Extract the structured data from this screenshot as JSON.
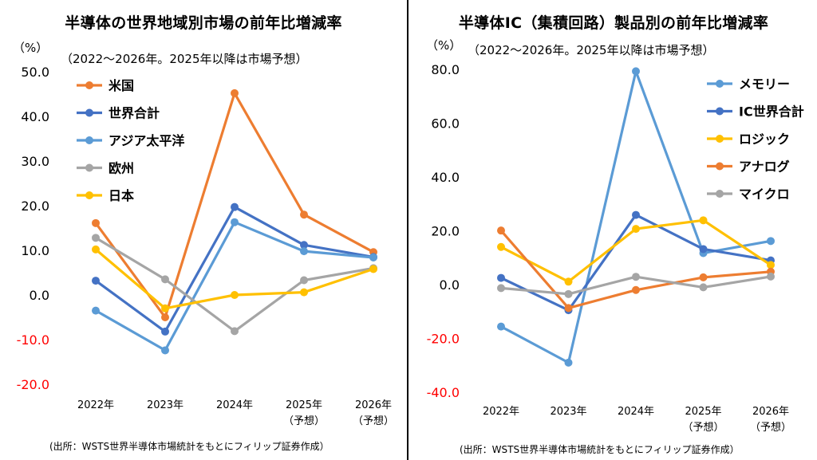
{
  "chart_data": [
    {
      "type": "line",
      "title": "半導体の世界地域別市場の前年比増減率",
      "unit_label": "（%）",
      "subtitle": "（2022～2026年。2025年以降は市場予想）",
      "source": "(出所：WSTS世界半導体市場統計をもとにフィリップ証券作成）",
      "categories": [
        "2022年",
        "2023年",
        "2024年",
        "2025年",
        "2026年"
      ],
      "category_notes": [
        "",
        "",
        "",
        "（予想）",
        "（予想）"
      ],
      "ylim": [
        -20,
        50
      ],
      "yticks": [
        "50.0",
        "40.0",
        "30.0",
        "20.0",
        "10.0",
        "0.0",
        "-10.0",
        "-20.0"
      ],
      "negative_tick_color": "#ff0000",
      "grid": false,
      "legend_position": "top-left",
      "series": [
        {
          "name": "米国",
          "color": "#ed7d31",
          "values": [
            16.1,
            -5.0,
            45.2,
            18.0,
            9.6
          ]
        },
        {
          "name": "世界合計",
          "color": "#4472c4",
          "values": [
            3.2,
            -8.2,
            19.7,
            11.2,
            8.5
          ]
        },
        {
          "name": "アジア太平洋",
          "color": "#5b9bd5",
          "values": [
            -3.5,
            -12.4,
            16.3,
            9.8,
            8.4
          ]
        },
        {
          "name": "欧州",
          "color": "#a5a5a5",
          "values": [
            12.8,
            3.5,
            -8.1,
            3.3,
            6.0
          ]
        },
        {
          "name": "日本",
          "color": "#ffc000",
          "values": [
            10.2,
            -3.0,
            0.0,
            0.6,
            5.8
          ]
        }
      ]
    },
    {
      "type": "line",
      "title": "半導体IC（集積回路）製品別の前年比増減率",
      "unit_label": "（%）",
      "subtitle": "（2022～2026年。2025年以降は市場予想）",
      "source": "(出所：WSTS世界半導体市場統計をもとにフィリップ証券作成）",
      "categories": [
        "2022年",
        "2023年",
        "2024年",
        "2025年",
        "2026年"
      ],
      "category_notes": [
        "",
        "",
        "",
        "（予想）",
        "（予想）"
      ],
      "ylim": [
        -40,
        80
      ],
      "yticks": [
        "80.0",
        "60.0",
        "40.0",
        "20.0",
        "0.0",
        "-20.0",
        "-40.0"
      ],
      "negative_tick_color": "#ff0000",
      "grid": false,
      "legend_position": "top-right",
      "series": [
        {
          "name": "メモリー",
          "color": "#5b9bd5",
          "values": [
            -15.6,
            -29.0,
            79.3,
            11.7,
            16.2
          ]
        },
        {
          "name": "IC世界合計",
          "color": "#4472c4",
          "values": [
            2.5,
            -9.5,
            25.9,
            13.2,
            9.0
          ]
        },
        {
          "name": "ロジック",
          "color": "#ffc000",
          "values": [
            14.0,
            1.1,
            20.7,
            23.9,
            7.3
          ]
        },
        {
          "name": "アナログ",
          "color": "#ed7d31",
          "values": [
            20.1,
            -8.7,
            -2.0,
            2.7,
            4.8
          ]
        },
        {
          "name": "マイクロ",
          "color": "#a5a5a5",
          "values": [
            -1.3,
            -3.5,
            2.9,
            -1.0,
            3.0
          ]
        }
      ]
    }
  ]
}
